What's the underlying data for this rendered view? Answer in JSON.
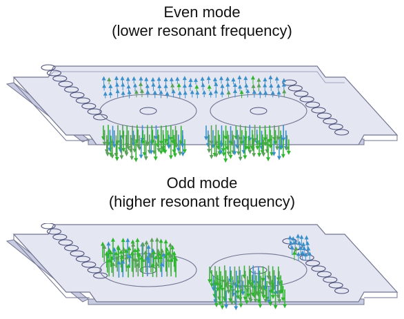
{
  "even_mode": {
    "title": "Even mode",
    "subtitle": "(lower resonant frequency)"
  },
  "odd_mode": {
    "title": "Odd mode",
    "subtitle": "(higher resonant frequency)"
  },
  "colors": {
    "substrate_face": "#e4e6f2",
    "substrate_edge": "#6f7390",
    "via_ring": "#4a4e78",
    "arrow_strong": "#2fb52f",
    "arrow_mid": "#5aa05a",
    "arrow_weak": "#3a8fc8"
  }
}
